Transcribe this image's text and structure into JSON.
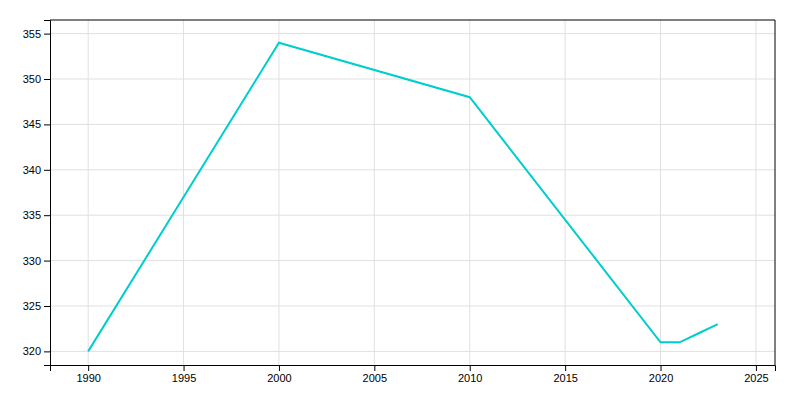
{
  "chart_data": {
    "type": "line",
    "x": [
      1990,
      2000,
      2010,
      2020,
      2021,
      2022,
      2023
    ],
    "values": [
      320,
      354,
      348,
      321,
      321,
      322,
      323
    ],
    "color": "#00CDCD",
    "xlim": [
      1988,
      2026
    ],
    "ylim": [
      318.5,
      356.5
    ],
    "xticks": [
      1990,
      1995,
      2000,
      2005,
      2010,
      2015,
      2020,
      2025
    ],
    "yticks": [
      320,
      325,
      330,
      335,
      340,
      345,
      350,
      355
    ],
    "grid": true
  }
}
